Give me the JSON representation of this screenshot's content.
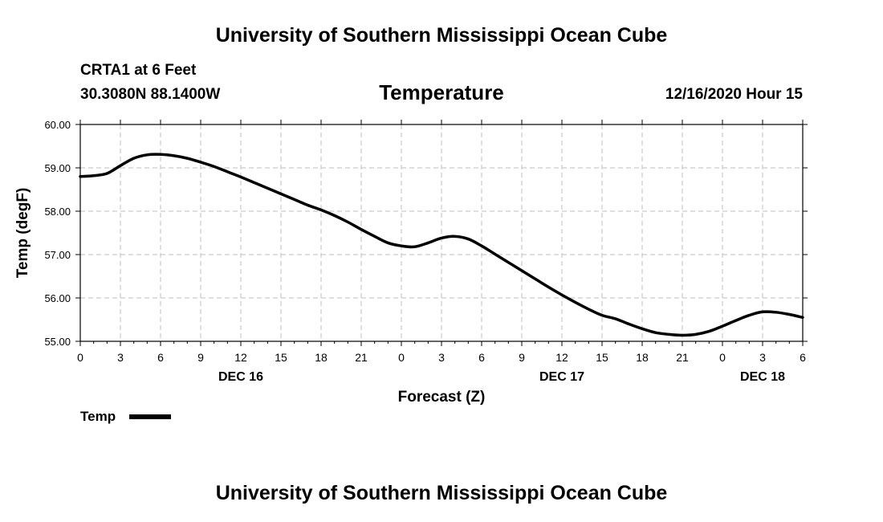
{
  "header": {
    "title_top": "University of Southern Mississippi Ocean Cube",
    "title_bottom": "University of Southern Mississippi Ocean Cube",
    "station": "CRTA1 at 6 Feet",
    "coords": "30.3080N 88.1400W",
    "datetime": "12/16/2020 Hour 15"
  },
  "legend": {
    "label": "Temp"
  },
  "colors": {
    "line": "#000000",
    "grid": "#bfbfbf",
    "background": "#ffffff"
  },
  "chart_data": {
    "type": "line",
    "title": "Temperature",
    "xlabel": "Forecast (Z)",
    "ylabel": "Temp (degF)",
    "ylim": [
      55.0,
      60.0
    ],
    "xlim": [
      0,
      54
    ],
    "yticks": [
      "55.00",
      "56.00",
      "57.00",
      "58.00",
      "59.00",
      "60.00"
    ],
    "xtick_labels": [
      "0",
      "3",
      "6",
      "9",
      "12",
      "15",
      "18",
      "21",
      "0",
      "3",
      "6",
      "9",
      "12",
      "15",
      "18",
      "21",
      "0",
      "3",
      "6"
    ],
    "day_labels": [
      {
        "label": "DEC 16",
        "hour": 12
      },
      {
        "label": "DEC 17",
        "hour": 36
      },
      {
        "label": "DEC 18",
        "hour": 51
      }
    ],
    "grid": true,
    "legend_position": "bottom-left",
    "series": [
      {
        "name": "Temp",
        "x": [
          0,
          1,
          2,
          3,
          4,
          5,
          6,
          7,
          8,
          9,
          10,
          11,
          12,
          13,
          14,
          15,
          16,
          17,
          18,
          19,
          20,
          21,
          22,
          23,
          24,
          25,
          26,
          27,
          28,
          29,
          30,
          31,
          32,
          33,
          34,
          35,
          36,
          37,
          38,
          39,
          40,
          41,
          42,
          43,
          44,
          45,
          46,
          47,
          48,
          49,
          50,
          51,
          52,
          53,
          54
        ],
        "values": [
          58.8,
          58.82,
          58.87,
          59.05,
          59.22,
          59.3,
          59.31,
          59.28,
          59.22,
          59.13,
          59.03,
          58.91,
          58.79,
          58.66,
          58.53,
          58.4,
          58.27,
          58.14,
          58.03,
          57.9,
          57.75,
          57.58,
          57.42,
          57.27,
          57.2,
          57.18,
          57.27,
          57.38,
          57.42,
          57.36,
          57.2,
          57.01,
          56.82,
          56.63,
          56.44,
          56.25,
          56.07,
          55.9,
          55.74,
          55.6,
          55.52,
          55.4,
          55.29,
          55.2,
          55.16,
          55.14,
          55.16,
          55.23,
          55.35,
          55.48,
          55.6,
          55.68,
          55.67,
          55.62,
          55.55
        ]
      }
    ]
  }
}
